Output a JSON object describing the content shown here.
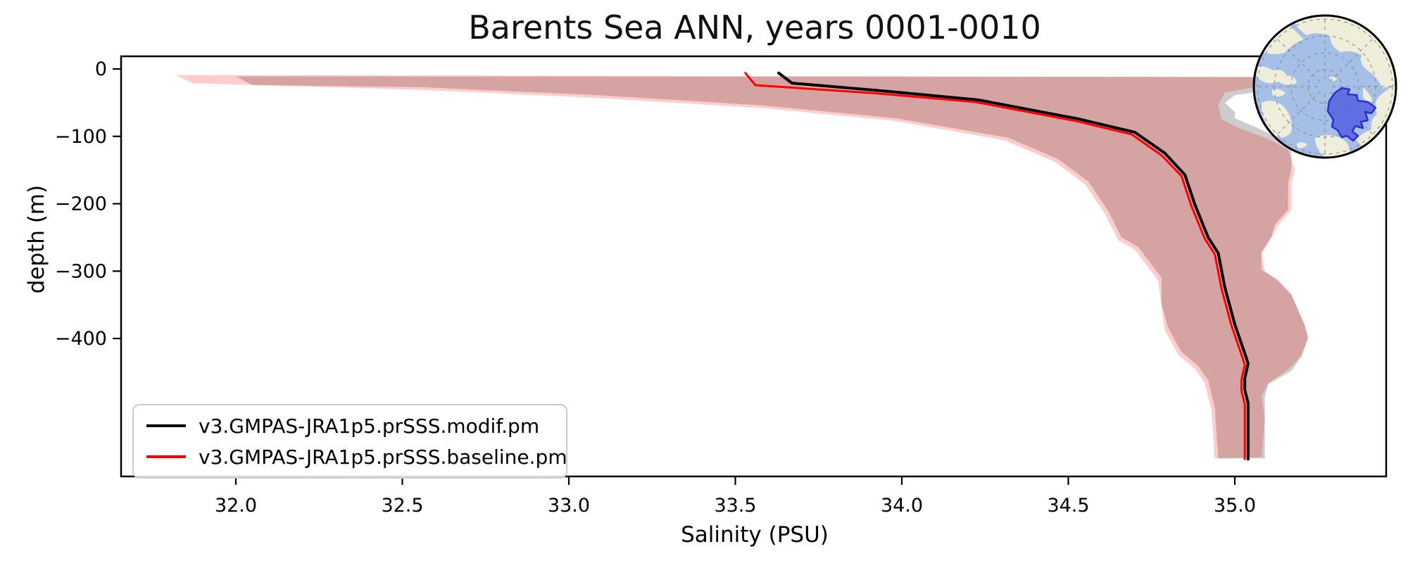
{
  "figure": {
    "title": "Barents Sea ANN, years 0001-0010"
  },
  "chart_data": {
    "type": "line",
    "title": "Barents Sea ANN, years 0001-0010",
    "xlabel": "Salinity (PSU)",
    "ylabel": "depth (m)",
    "xlim": [
      31.66,
      35.46
    ],
    "ylim": [
      -601,
      19
    ],
    "grid": false,
    "x_ticks": [
      32.0,
      32.5,
      33.0,
      33.5,
      34.0,
      34.5,
      35.0
    ],
    "x_tick_labels": [
      "32.0",
      "32.5",
      "33.0",
      "33.5",
      "34.0",
      "34.5",
      "35.0"
    ],
    "y_ticks": [
      0,
      -100,
      -200,
      -300,
      -400
    ],
    "y_tick_labels": [
      "0",
      "−100",
      "−200",
      "−300",
      "−400"
    ],
    "legend": {
      "position": "lower left",
      "entries": [
        {
          "label": "v3.GMPAS-JRA1p5.prSSS.modif.pm",
          "color": "#000000"
        },
        {
          "label": "v3.GMPAS-JRA1p5.prSSS.baseline.pm",
          "color": "#ff0000"
        }
      ]
    },
    "series": [
      {
        "name": "v3.GMPAS-JRA1p5.prSSS.modif.pm",
        "line_color": "#000000",
        "line_width": 4,
        "band_color": "rgba(0,0,0,0.20)",
        "values": [
          [
            33.63,
            -6
          ],
          [
            33.67,
            -21
          ],
          [
            33.93,
            -32
          ],
          [
            34.23,
            -46
          ],
          [
            34.53,
            -74
          ],
          [
            34.7,
            -94
          ],
          [
            34.79,
            -125
          ],
          [
            34.85,
            -157
          ],
          [
            34.88,
            -201
          ],
          [
            34.92,
            -250
          ],
          [
            34.95,
            -273
          ],
          [
            34.97,
            -324
          ],
          [
            35.0,
            -379
          ],
          [
            35.03,
            -422
          ],
          [
            35.04,
            -437
          ],
          [
            35.03,
            -459
          ],
          [
            35.03,
            -476
          ],
          [
            35.04,
            -496
          ],
          [
            35.04,
            -579
          ]
        ],
        "band_lower": [
          [
            32.0,
            -11
          ],
          [
            32.05,
            -24
          ],
          [
            32.56,
            -27
          ],
          [
            33.09,
            -39
          ],
          [
            33.58,
            -54
          ],
          [
            33.98,
            -73
          ],
          [
            34.32,
            -102
          ],
          [
            34.47,
            -134
          ],
          [
            34.56,
            -167
          ],
          [
            34.62,
            -211
          ],
          [
            34.66,
            -250
          ],
          [
            34.71,
            -264
          ],
          [
            34.78,
            -310
          ],
          [
            34.78,
            -349
          ],
          [
            34.8,
            -384
          ],
          [
            34.84,
            -420
          ],
          [
            34.89,
            -441
          ],
          [
            34.92,
            -462
          ],
          [
            34.94,
            -503
          ],
          [
            34.95,
            -578
          ]
        ],
        "band_upper": [
          [
            35.24,
            -12
          ],
          [
            35.14,
            -29
          ],
          [
            35.0,
            -39
          ],
          [
            34.97,
            -50
          ],
          [
            35.0,
            -64
          ],
          [
            35.0,
            -73
          ],
          [
            35.08,
            -90
          ],
          [
            35.14,
            -106
          ],
          [
            35.17,
            -121
          ],
          [
            35.17,
            -147
          ],
          [
            35.16,
            -170
          ],
          [
            35.16,
            -209
          ],
          [
            35.12,
            -231
          ],
          [
            35.11,
            -249
          ],
          [
            35.08,
            -272
          ],
          [
            35.08,
            -298
          ],
          [
            35.13,
            -313
          ],
          [
            35.17,
            -334
          ],
          [
            35.21,
            -381
          ],
          [
            35.22,
            -400
          ],
          [
            35.2,
            -427
          ],
          [
            35.17,
            -448
          ],
          [
            35.1,
            -468
          ],
          [
            35.09,
            -487
          ],
          [
            35.09,
            -520
          ],
          [
            35.09,
            -578
          ]
        ]
      },
      {
        "name": "v3.GMPAS-JRA1p5.prSSS.baseline.pm",
        "line_color": "#ff0000",
        "line_width": 3,
        "band_color": "rgba(255,0,0,0.20)",
        "values": [
          [
            33.53,
            -6
          ],
          [
            33.56,
            -24
          ],
          [
            33.92,
            -36
          ],
          [
            34.22,
            -49
          ],
          [
            34.52,
            -77
          ],
          [
            34.69,
            -97
          ],
          [
            34.78,
            -128
          ],
          [
            34.84,
            -159
          ],
          [
            34.87,
            -204
          ],
          [
            34.91,
            -252
          ],
          [
            34.94,
            -275
          ],
          [
            34.96,
            -326
          ],
          [
            34.99,
            -381
          ],
          [
            35.02,
            -424
          ],
          [
            35.03,
            -439
          ],
          [
            35.02,
            -461
          ],
          [
            35.02,
            -478
          ],
          [
            35.03,
            -498
          ],
          [
            35.03,
            -579
          ]
        ],
        "band_lower": [
          [
            31.82,
            -9
          ],
          [
            31.87,
            -21
          ],
          [
            32.56,
            -31
          ],
          [
            33.09,
            -43
          ],
          [
            33.58,
            -58
          ],
          [
            33.98,
            -77
          ],
          [
            34.31,
            -106
          ],
          [
            34.46,
            -138
          ],
          [
            34.55,
            -171
          ],
          [
            34.61,
            -215
          ],
          [
            34.65,
            -254
          ],
          [
            34.7,
            -268
          ],
          [
            34.77,
            -314
          ],
          [
            34.78,
            -353
          ],
          [
            34.79,
            -388
          ],
          [
            34.83,
            -424
          ],
          [
            34.88,
            -445
          ],
          [
            34.91,
            -466
          ],
          [
            34.93,
            -507
          ],
          [
            34.94,
            -578
          ]
        ],
        "band_upper": [
          [
            35.23,
            -12
          ],
          [
            35.08,
            -25
          ],
          [
            34.97,
            -35
          ],
          [
            34.95,
            -54
          ],
          [
            34.96,
            -75
          ],
          [
            35.01,
            -87
          ],
          [
            35.1,
            -104
          ],
          [
            35.16,
            -120
          ],
          [
            35.18,
            -149
          ],
          [
            35.17,
            -171
          ],
          [
            35.17,
            -209
          ],
          [
            35.13,
            -232
          ],
          [
            35.11,
            -251
          ],
          [
            35.08,
            -274
          ],
          [
            35.09,
            -300
          ],
          [
            35.13,
            -315
          ],
          [
            35.17,
            -336
          ],
          [
            35.21,
            -379
          ],
          [
            35.22,
            -398
          ],
          [
            35.2,
            -425
          ],
          [
            35.16,
            -446
          ],
          [
            35.1,
            -466
          ],
          [
            35.08,
            -485
          ],
          [
            35.09,
            -518
          ],
          [
            35.08,
            -576
          ]
        ]
      }
    ]
  },
  "inset_map": {
    "projection": "north-polar",
    "ocean_color": "#a5bfe7",
    "land_color": "#efeeda",
    "graticule_color": "#8c8c8c",
    "border_color": "#000000",
    "region_fill": "#5560e2",
    "region_stroke": "#2b2fd0",
    "region_opacity": 0.85
  }
}
